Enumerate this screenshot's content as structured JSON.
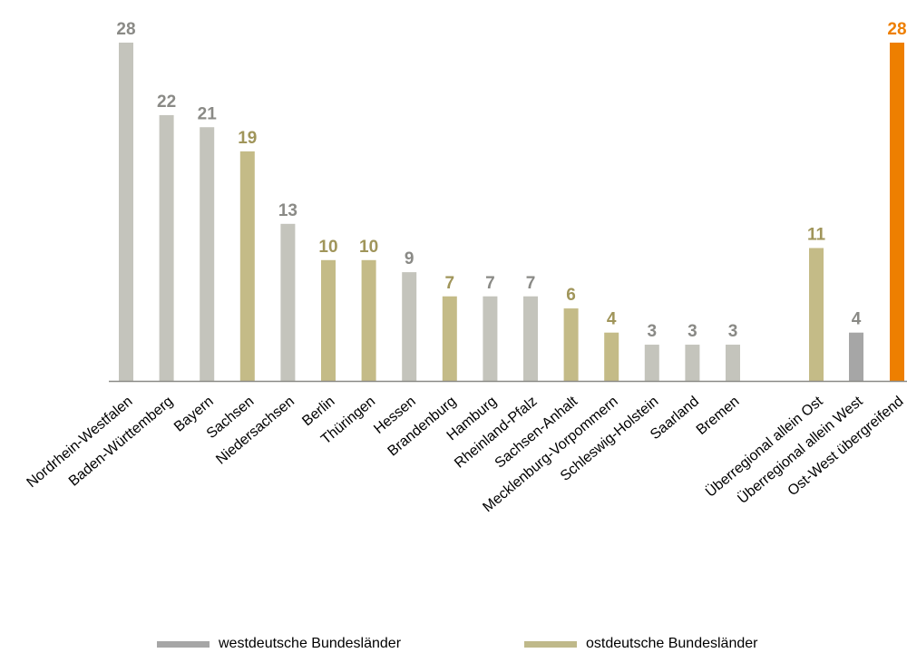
{
  "chart_data": {
    "type": "bar",
    "categories": [
      "Nordrhein-Westfalen",
      "Baden-Württemberg",
      "Bayern",
      "Sachsen",
      "Niedersachsen",
      "Berlin",
      "Thüringen",
      "Hessen",
      "Brandenburg",
      "Hamburg",
      "Rheinland-Pfalz",
      "Sachsen-Anhalt",
      "Mecklenburg-Vorpommern",
      "Schleswig-Holstein",
      "Saarland",
      "Bremen",
      "Überregional allein Ost",
      "Überregional allein West",
      "Ost-West übergreifend"
    ],
    "values": [
      28,
      22,
      21,
      19,
      13,
      10,
      10,
      9,
      7,
      7,
      7,
      6,
      4,
      3,
      3,
      3,
      11,
      4,
      28
    ],
    "groups": [
      "west",
      "west",
      "west",
      "ost",
      "west",
      "ost",
      "ost",
      "west",
      "ost",
      "west",
      "west",
      "ost",
      "ost",
      "west",
      "west",
      "west",
      "ost",
      "west-overall",
      "overall"
    ],
    "ylim": [
      0,
      28
    ],
    "grid": false,
    "legend_position": "bottom",
    "legend": [
      {
        "label": "westdeutsche Bundesländer",
        "color": "#a6a6a6"
      },
      {
        "label": "ostdeutsche Bundesländer",
        "color": "#bfb98a"
      }
    ]
  },
  "colors": {
    "west": "#c4c4bc",
    "west_label": "#8a8a86",
    "ost": "#c4bb87",
    "ost_label": "#a0955a",
    "west-overall": "#a6a6a6",
    "west-overall_label": "#8a8a86",
    "overall": "#ee7f00",
    "overall_label": "#ee7f00",
    "axis": "#8a8a86"
  }
}
